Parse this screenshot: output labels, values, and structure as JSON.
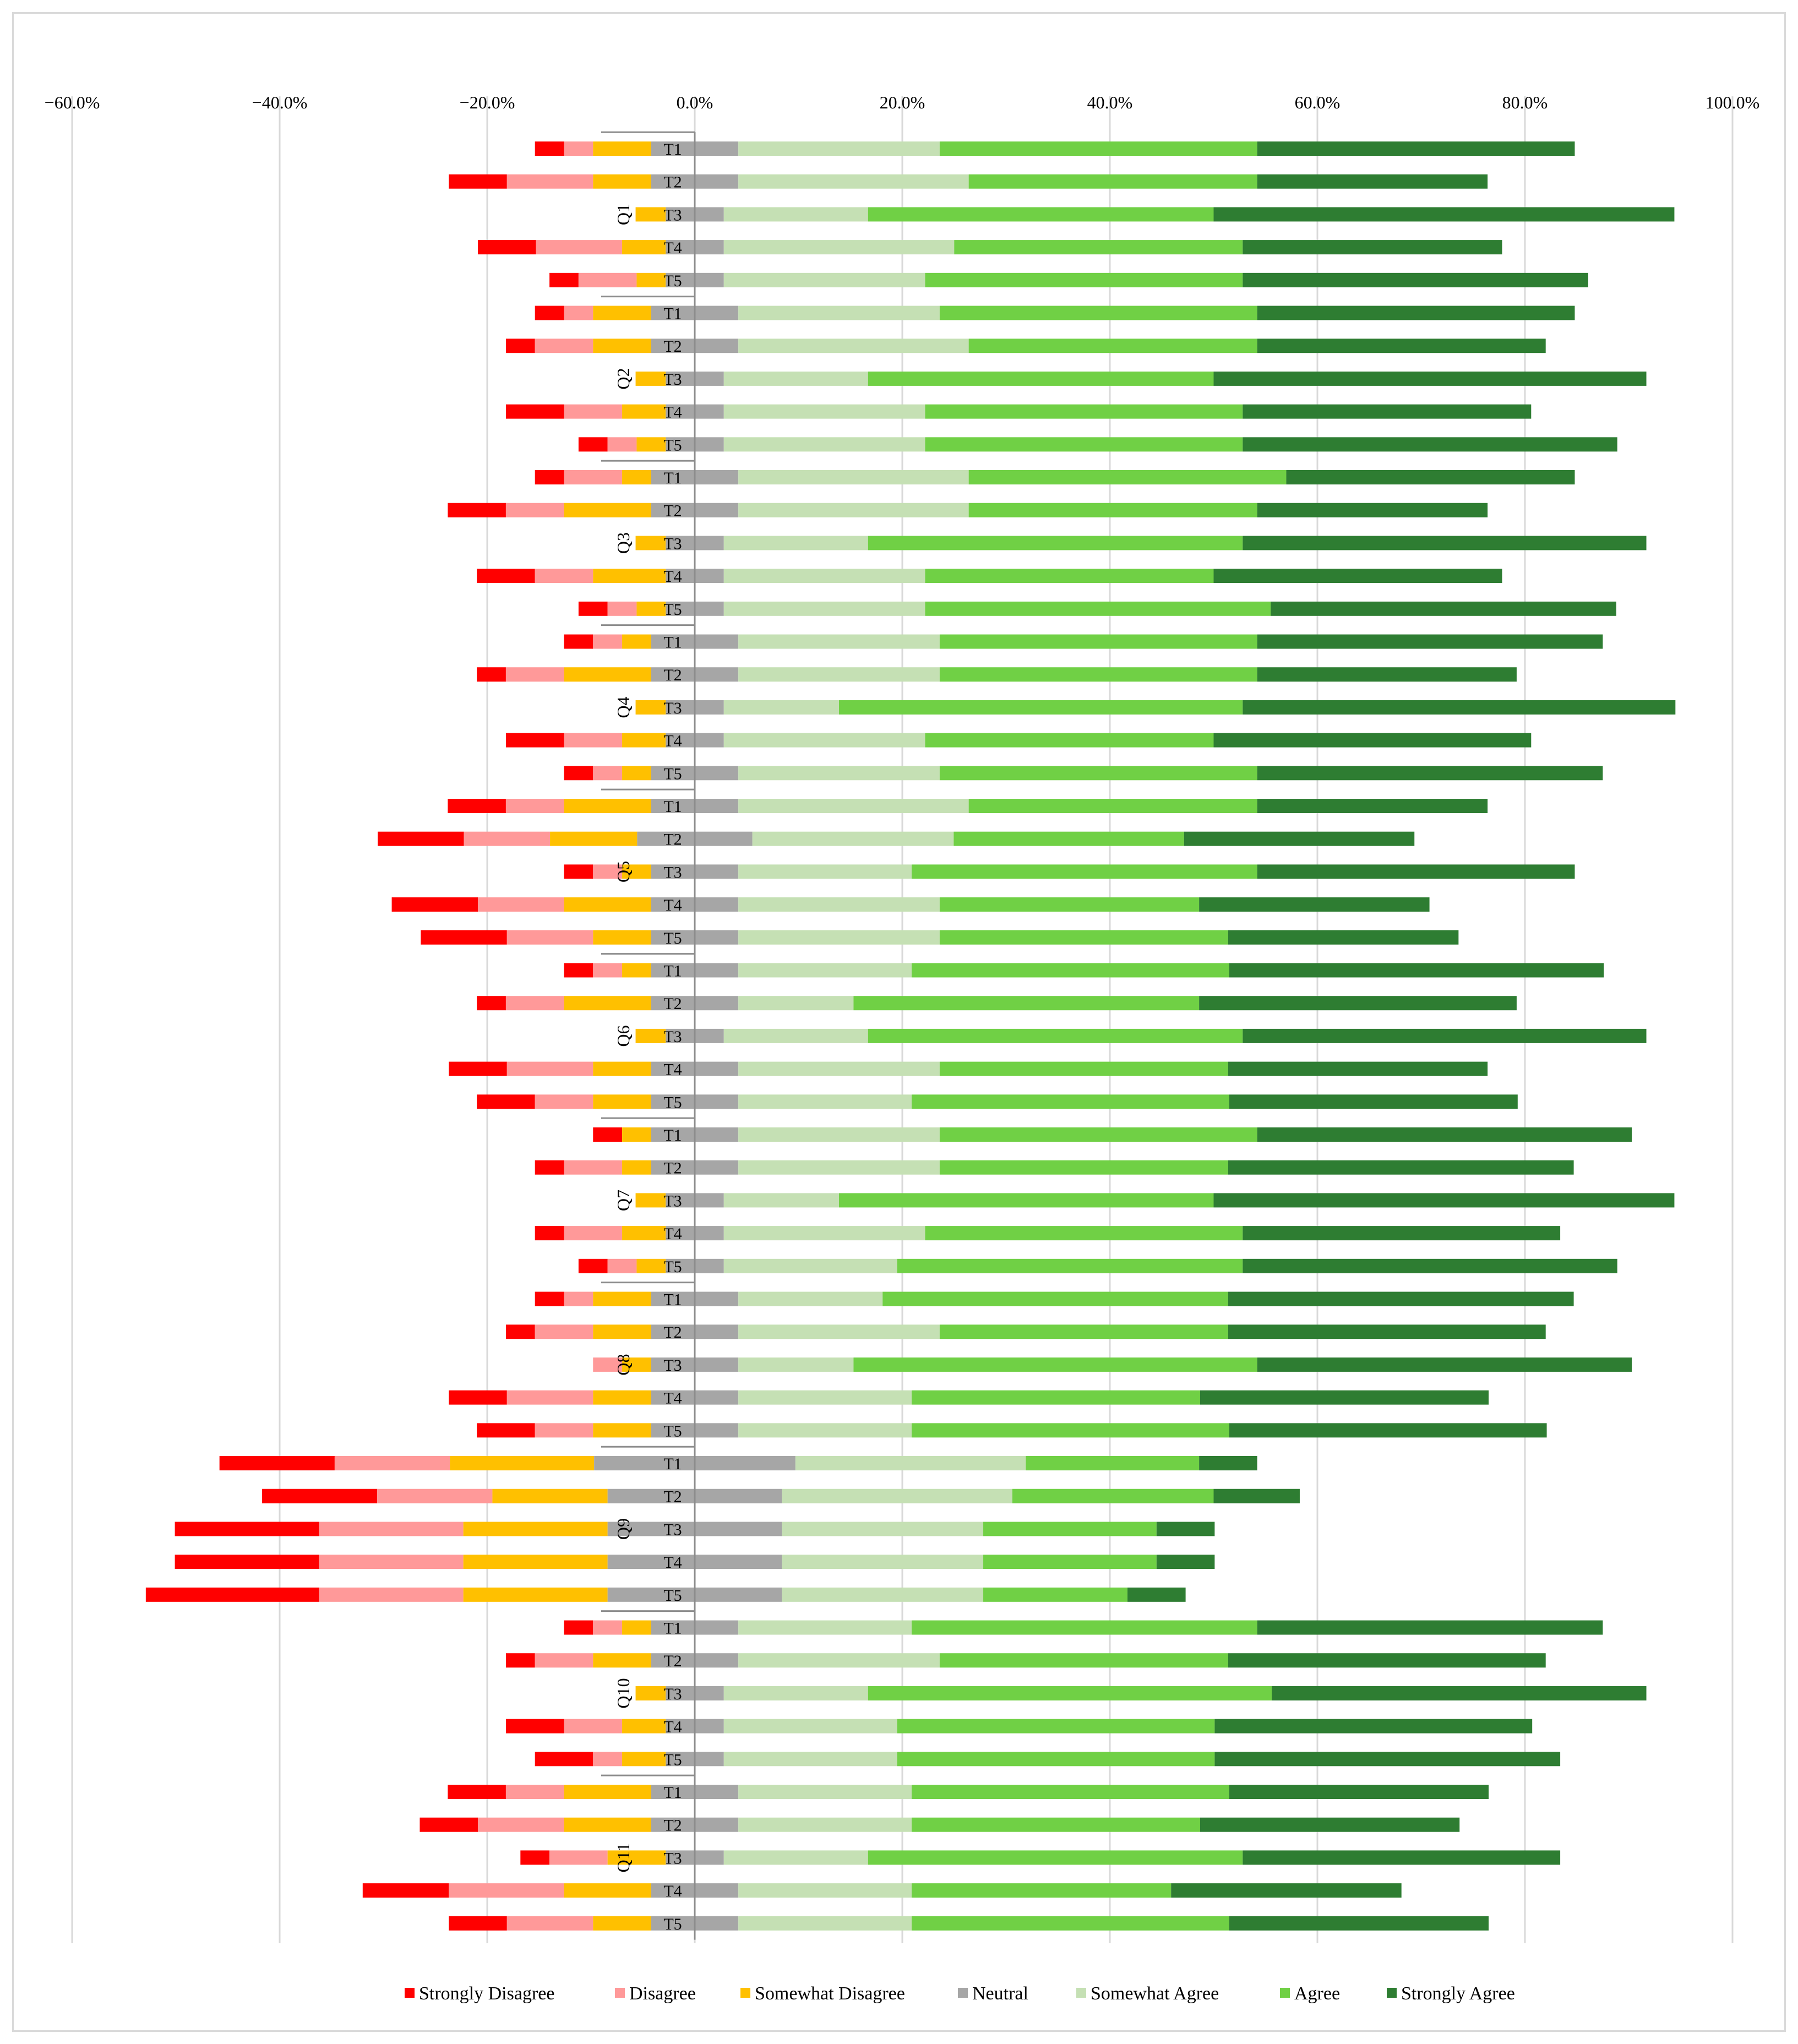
{
  "chart_data": {
    "type": "bar",
    "orientation": "horizontal",
    "stacked": "diverging",
    "title": "",
    "xlabel": "",
    "ylabel": "",
    "xlim": [
      -60,
      100
    ],
    "x_ticks": [
      -60,
      -40,
      -20,
      0,
      20,
      40,
      60,
      80,
      100
    ],
    "x_tick_labels": [
      "−60.0%",
      "−40.0%",
      "−20.0%",
      "0.0%",
      "20.0%",
      "40.0%",
      "60.0%",
      "80.0%",
      "100.0%"
    ],
    "grid": true,
    "legend_position": "bottom",
    "series": [
      {
        "name": "Strongly Disagree",
        "color": "#ff0000"
      },
      {
        "name": "Disagree",
        "color": "#ff9999"
      },
      {
        "name": "Somewhat Disagree",
        "color": "#ffc000"
      },
      {
        "name": "Neutral",
        "color": "#a6a6a6"
      },
      {
        "name": "Somewhat Agree",
        "color": "#c5e0b4"
      },
      {
        "name": "Agree",
        "color": "#70d045"
      },
      {
        "name": "Strongly Agree",
        "color": "#2e7d32"
      }
    ],
    "groups": [
      {
        "label": "Q1",
        "items": [
          {
            "label": "T1",
            "values": [
              2.8,
              2.8,
              5.6,
              8.4,
              19.4,
              30.6,
              30.6
            ]
          },
          {
            "label": "T2",
            "values": [
              5.6,
              8.3,
              5.6,
              8.4,
              22.2,
              27.8,
              22.2
            ]
          },
          {
            "label": "T3",
            "values": [
              0,
              0,
              2.9,
              5.6,
              13.9,
              33.3,
              44.4
            ]
          },
          {
            "label": "T4",
            "values": [
              5.6,
              8.3,
              4.2,
              5.6,
              22.2,
              27.8,
              25.0
            ]
          },
          {
            "label": "T5",
            "values": [
              2.8,
              5.6,
              2.8,
              5.6,
              19.4,
              30.6,
              33.3
            ]
          }
        ]
      },
      {
        "label": "Q2",
        "items": [
          {
            "label": "T1",
            "values": [
              2.8,
              2.8,
              5.6,
              8.4,
              19.4,
              30.6,
              30.6
            ]
          },
          {
            "label": "T2",
            "values": [
              2.8,
              5.6,
              5.6,
              8.4,
              22.2,
              27.8,
              27.8
            ]
          },
          {
            "label": "T3",
            "values": [
              0,
              0,
              2.9,
              5.6,
              13.9,
              33.3,
              41.7
            ]
          },
          {
            "label": "T4",
            "values": [
              5.6,
              5.6,
              4.2,
              5.6,
              19.4,
              30.6,
              27.8
            ]
          },
          {
            "label": "T5",
            "values": [
              2.8,
              2.8,
              2.8,
              5.6,
              19.4,
              30.6,
              36.1
            ]
          }
        ]
      },
      {
        "label": "Q3",
        "items": [
          {
            "label": "T1",
            "values": [
              2.8,
              5.6,
              2.8,
              8.4,
              22.2,
              30.6,
              27.8
            ]
          },
          {
            "label": "T2",
            "values": [
              5.6,
              5.6,
              8.4,
              8.4,
              22.2,
              27.8,
              22.2
            ]
          },
          {
            "label": "T3",
            "values": [
              0,
              0,
              2.9,
              5.6,
              13.9,
              36.1,
              38.9
            ]
          },
          {
            "label": "T4",
            "values": [
              5.6,
              5.6,
              7.0,
              5.6,
              19.4,
              27.8,
              27.8
            ]
          },
          {
            "label": "T5",
            "values": [
              2.8,
              2.8,
              2.8,
              5.6,
              19.4,
              33.3,
              33.3
            ]
          }
        ]
      },
      {
        "label": "Q4",
        "items": [
          {
            "label": "T1",
            "values": [
              2.8,
              2.8,
              2.8,
              8.4,
              19.4,
              30.6,
              33.3
            ]
          },
          {
            "label": "T2",
            "values": [
              2.8,
              5.6,
              8.4,
              8.4,
              19.4,
              30.6,
              25.0
            ]
          },
          {
            "label": "T3",
            "values": [
              0,
              0,
              2.9,
              5.6,
              11.1,
              38.9,
              41.7
            ]
          },
          {
            "label": "T4",
            "values": [
              5.6,
              5.6,
              4.2,
              5.6,
              19.4,
              27.8,
              30.6
            ]
          },
          {
            "label": "T5",
            "values": [
              2.8,
              2.8,
              2.8,
              8.4,
              19.4,
              30.6,
              33.3
            ]
          }
        ]
      },
      {
        "label": "Q5",
        "items": [
          {
            "label": "T1",
            "values": [
              5.6,
              5.6,
              8.4,
              8.4,
              22.2,
              27.8,
              22.2
            ]
          },
          {
            "label": "T2",
            "values": [
              8.3,
              8.3,
              8.4,
              11.1,
              19.4,
              22.2,
              22.2
            ]
          },
          {
            "label": "T3",
            "values": [
              2.8,
              2.8,
              2.8,
              8.4,
              16.7,
              33.3,
              30.6
            ]
          },
          {
            "label": "T4",
            "values": [
              8.3,
              8.3,
              8.4,
              8.4,
              19.4,
              25.0,
              22.2
            ]
          },
          {
            "label": "T5",
            "values": [
              8.3,
              8.3,
              5.6,
              8.4,
              19.4,
              27.8,
              22.2
            ]
          }
        ]
      },
      {
        "label": "Q6",
        "items": [
          {
            "label": "T1",
            "values": [
              2.8,
              2.8,
              2.8,
              8.4,
              16.7,
              30.6,
              36.1
            ]
          },
          {
            "label": "T2",
            "values": [
              2.8,
              5.6,
              8.4,
              8.4,
              11.1,
              33.3,
              30.6
            ]
          },
          {
            "label": "T3",
            "values": [
              0,
              0,
              2.9,
              5.6,
              13.9,
              36.1,
              38.9
            ]
          },
          {
            "label": "T4",
            "values": [
              5.6,
              8.3,
              5.6,
              8.4,
              19.4,
              27.8,
              25.0
            ]
          },
          {
            "label": "T5",
            "values": [
              5.6,
              5.6,
              5.6,
              8.4,
              16.7,
              30.6,
              27.8
            ]
          }
        ]
      },
      {
        "label": "Q7",
        "items": [
          {
            "label": "T1",
            "values": [
              2.8,
              0,
              2.8,
              8.4,
              19.4,
              30.6,
              36.1
            ]
          },
          {
            "label": "T2",
            "values": [
              2.8,
              5.6,
              2.8,
              8.4,
              19.4,
              27.8,
              33.3
            ]
          },
          {
            "label": "T3",
            "values": [
              0,
              0,
              2.9,
              5.6,
              11.1,
              36.1,
              44.4
            ]
          },
          {
            "label": "T4",
            "values": [
              2.8,
              5.6,
              4.2,
              5.6,
              19.4,
              30.6,
              30.6
            ]
          },
          {
            "label": "T5",
            "values": [
              2.8,
              2.8,
              2.8,
              5.6,
              16.7,
              33.3,
              36.1
            ]
          }
        ]
      },
      {
        "label": "Q8",
        "items": [
          {
            "label": "T1",
            "values": [
              2.8,
              2.8,
              5.6,
              8.4,
              13.9,
              33.3,
              33.3
            ]
          },
          {
            "label": "T2",
            "values": [
              2.8,
              5.6,
              5.6,
              8.4,
              19.4,
              27.8,
              30.6
            ]
          },
          {
            "label": "T3",
            "values": [
              0,
              2.8,
              2.8,
              8.4,
              11.1,
              38.9,
              36.1
            ]
          },
          {
            "label": "T4",
            "values": [
              5.6,
              8.3,
              5.6,
              8.4,
              16.7,
              27.8,
              27.8
            ]
          },
          {
            "label": "T5",
            "values": [
              5.6,
              5.6,
              5.6,
              8.4,
              16.7,
              30.6,
              30.6
            ]
          }
        ]
      },
      {
        "label": "Q9",
        "items": [
          {
            "label": "T1",
            "values": [
              11.1,
              11.1,
              13.9,
              19.4,
              22.2,
              16.7,
              5.6
            ]
          },
          {
            "label": "T2",
            "values": [
              11.1,
              11.1,
              11.1,
              16.8,
              22.2,
              19.4,
              8.3
            ]
          },
          {
            "label": "T3",
            "values": [
              13.9,
              13.9,
              13.9,
              16.8,
              19.4,
              16.7,
              5.6
            ]
          },
          {
            "label": "T4",
            "values": [
              13.9,
              13.9,
              13.9,
              16.8,
              19.4,
              16.7,
              5.6
            ]
          },
          {
            "label": "T5",
            "values": [
              16.7,
              13.9,
              13.9,
              16.8,
              19.4,
              13.9,
              5.6
            ]
          }
        ]
      },
      {
        "label": "Q10",
        "items": [
          {
            "label": "T1",
            "values": [
              2.8,
              2.8,
              2.8,
              8.4,
              16.7,
              33.3,
              33.3
            ]
          },
          {
            "label": "T2",
            "values": [
              2.8,
              5.6,
              5.6,
              8.4,
              19.4,
              27.8,
              30.6
            ]
          },
          {
            "label": "T3",
            "values": [
              0,
              0,
              2.9,
              5.6,
              13.9,
              38.9,
              36.1
            ]
          },
          {
            "label": "T4",
            "values": [
              5.6,
              5.6,
              4.2,
              5.6,
              16.7,
              30.6,
              30.6
            ]
          },
          {
            "label": "T5",
            "values": [
              5.6,
              2.8,
              4.2,
              5.6,
              16.7,
              30.6,
              33.3
            ]
          }
        ]
      },
      {
        "label": "Q11",
        "items": [
          {
            "label": "T1",
            "values": [
              5.6,
              5.6,
              8.4,
              8.4,
              16.7,
              30.6,
              25.0
            ]
          },
          {
            "label": "T2",
            "values": [
              5.6,
              8.3,
              8.4,
              8.4,
              16.7,
              27.8,
              25.0
            ]
          },
          {
            "label": "T3",
            "values": [
              2.8,
              5.6,
              5.6,
              5.6,
              13.9,
              36.1,
              30.6
            ]
          },
          {
            "label": "T4",
            "values": [
              8.3,
              11.1,
              8.4,
              8.4,
              16.7,
              25.0,
              22.2
            ]
          },
          {
            "label": "T5",
            "values": [
              5.6,
              8.3,
              5.6,
              8.4,
              16.7,
              30.6,
              25.0
            ]
          }
        ]
      }
    ]
  }
}
